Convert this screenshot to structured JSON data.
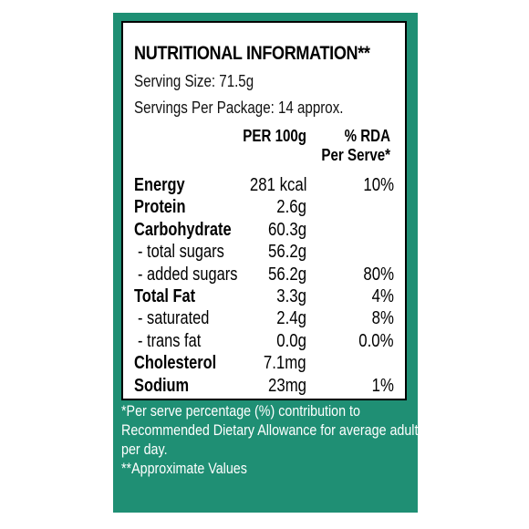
{
  "colors": {
    "panel_green": "#1f8f74",
    "text": "#000000",
    "footnote_text": "#ffffff"
  },
  "label": {
    "title": "NUTRITIONAL INFORMATION**",
    "serving_size": "Serving Size: 71.5g",
    "servings_per_package": "Servings Per Package: 14 approx.",
    "col_per100": "PER 100g",
    "col_rda_line1": "% RDA",
    "col_rda_line2": "Per Serve*",
    "rows": [
      {
        "name": "Energy",
        "per100": "281 kcal",
        "rda": "10%",
        "bold": true
      },
      {
        "name": "Protein",
        "per100": "2.6g",
        "rda": "",
        "bold": true
      },
      {
        "name": "Carbohydrate",
        "per100": "60.3g",
        "rda": "",
        "bold": true
      },
      {
        "name": "- total sugars",
        "per100": "56.2g",
        "rda": "",
        "bold": false
      },
      {
        "name": "- added sugars",
        "per100": "56.2g",
        "rda": "80%",
        "bold": false
      },
      {
        "name": "Total Fat",
        "per100": "3.3g",
        "rda": "4%",
        "bold": true
      },
      {
        "name": "- saturated",
        "per100": "2.4g",
        "rda": "8%",
        "bold": false
      },
      {
        "name": "- trans fat",
        "per100": "0.0g",
        "rda": "0.0%",
        "bold": false
      },
      {
        "name": "Cholesterol",
        "per100": "7.1mg",
        "rda": "",
        "bold": true
      },
      {
        "name": "Sodium",
        "per100": "23mg",
        "rda": "1%",
        "bold": true
      }
    ]
  },
  "footnotes": [
    "*Per serve percentage (%) contribution to",
    "Recommended Dietary Allowance for average adult",
    "per day.",
    "**Approximate Values"
  ]
}
